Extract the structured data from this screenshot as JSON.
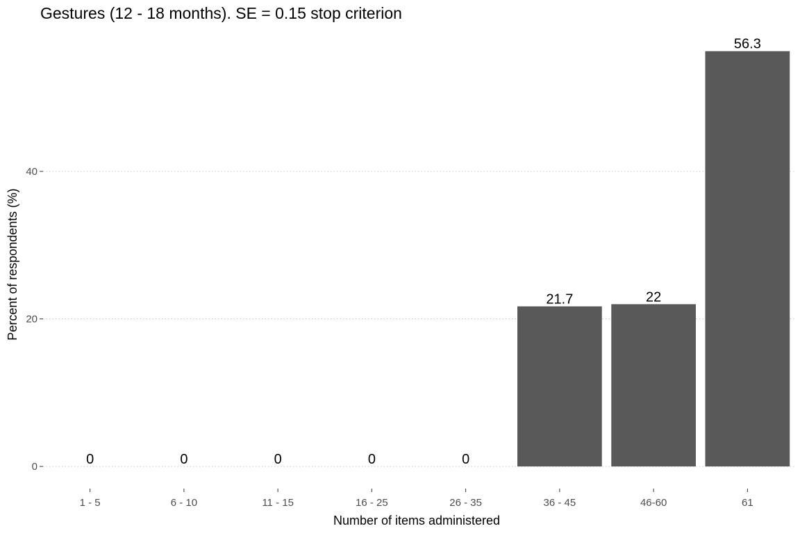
{
  "chart_data": {
    "type": "bar",
    "title": "Gestures (12 - 18 months). SE = 0.15 stop criterion",
    "xlabel": "Number of items administered",
    "ylabel": "Percent of respondents (%)",
    "categories": [
      "1 - 5",
      "6 - 10",
      "11 - 15",
      "16 - 25",
      "26 - 35",
      "36 - 45",
      "46-60",
      "61"
    ],
    "values": [
      0,
      0,
      0,
      0,
      0,
      21.7,
      22,
      56.3
    ],
    "data_labels": [
      "0",
      "0",
      "0",
      "0",
      "0",
      "21.7",
      "22",
      "56.3"
    ],
    "yticks": [
      0,
      20,
      40
    ],
    "ytick_labels": [
      "0",
      "20",
      "40"
    ],
    "ylim": [
      -3,
      59
    ],
    "grid": "horizontal-dotted",
    "legend": "none",
    "colors": {
      "bar": "#595959",
      "grid": "#c8c8c8",
      "text": "#000000",
      "tick_text": "#4d4d4d"
    }
  }
}
